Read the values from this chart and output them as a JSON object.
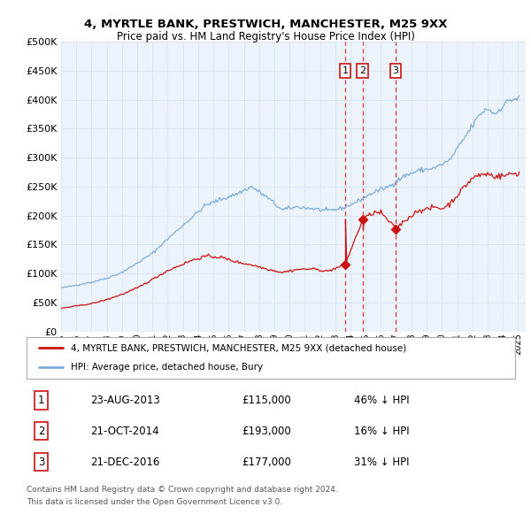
{
  "title": "4, MYRTLE BANK, PRESTWICH, MANCHESTER, M25 9XX",
  "subtitle": "Price paid vs. HM Land Registry's House Price Index (HPI)",
  "ylabel_ticks": [
    "£0",
    "£50K",
    "£100K",
    "£150K",
    "£200K",
    "£250K",
    "£300K",
    "£350K",
    "£400K",
    "£450K",
    "£500K"
  ],
  "ytick_values": [
    0,
    50000,
    100000,
    150000,
    200000,
    250000,
    300000,
    350000,
    400000,
    450000,
    500000
  ],
  "ylim": [
    0,
    500000
  ],
  "xlim_start": 1995.0,
  "xlim_end": 2025.5,
  "hpi_color": "#7aaddc",
  "price_color": "#cc1111",
  "dashed_line_color": "#dd2222",
  "background_color": "#edf3fb",
  "grid_color": "#d8e4f0",
  "transactions": [
    {
      "num": 1,
      "date": "23-AUG-2013",
      "price": 115000,
      "year": 2013.64,
      "pct": "46%",
      "dir": "↓"
    },
    {
      "num": 2,
      "date": "21-OCT-2014",
      "price": 193000,
      "year": 2014.8,
      "pct": "16%",
      "dir": "↓"
    },
    {
      "num": 3,
      "date": "21-DEC-2016",
      "price": 177000,
      "year": 2016.97,
      "pct": "31%",
      "dir": "↓"
    }
  ],
  "legend_label_red": "4, MYRTLE BANK, PRESTWICH, MANCHESTER, M25 9XX (detached house)",
  "legend_label_blue": "HPI: Average price, detached house, Bury",
  "footer1": "Contains HM Land Registry data © Crown copyright and database right 2024.",
  "footer2": "This data is licensed under the Open Government Licence v3.0.",
  "xtick_years": [
    1995,
    1996,
    1997,
    1998,
    1999,
    2000,
    2001,
    2002,
    2003,
    2004,
    2005,
    2006,
    2007,
    2008,
    2009,
    2010,
    2011,
    2012,
    2013,
    2014,
    2015,
    2016,
    2017,
    2018,
    2019,
    2020,
    2021,
    2022,
    2023,
    2024,
    2025
  ]
}
